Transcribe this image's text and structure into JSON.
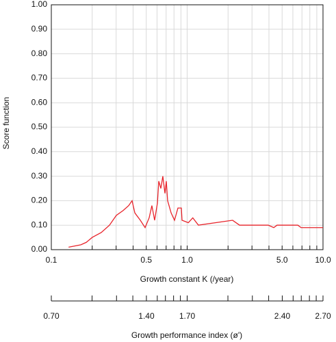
{
  "chart_data": {
    "type": "line",
    "ylabel": "Score function",
    "xlabel": "Growth constant K (/year)",
    "x2label": "Growth performance index (ø')",
    "color": "#e8232a",
    "xlog": true,
    "grid": true,
    "x": [
      0.134,
      0.165,
      0.181,
      0.2,
      0.233,
      0.268,
      0.301,
      0.338,
      0.371,
      0.393,
      0.412,
      0.452,
      0.49,
      0.525,
      0.55,
      0.576,
      0.604,
      0.618,
      0.64,
      0.662,
      0.686,
      0.702,
      0.718,
      0.762,
      0.807,
      0.855,
      0.906,
      0.917,
      1.02,
      1.1,
      1.21,
      2.16,
      2.43,
      3.95,
      4.34,
      4.59,
      6.52,
      6.9,
      10
    ],
    "values": [
      0.01,
      0.02,
      0.03,
      0.05,
      0.07,
      0.1,
      0.14,
      0.16,
      0.18,
      0.2,
      0.15,
      0.12,
      0.09,
      0.13,
      0.18,
      0.12,
      0.19,
      0.28,
      0.25,
      0.3,
      0.23,
      0.28,
      0.2,
      0.15,
      0.12,
      0.17,
      0.17,
      0.12,
      0.11,
      0.13,
      0.1,
      0.12,
      0.1,
      0.1,
      0.09,
      0.1,
      0.1,
      0.09,
      0.09
    ],
    "xlim": [
      0.1,
      10
    ],
    "xticks": [
      0.1,
      0.5,
      {
        "value": 1,
        "label": "1.0"
      },
      {
        "value": 5,
        "label": "5.0"
      },
      {
        "value": 10,
        "label": "10.0"
      }
    ],
    "xminor": [
      0.2,
      0.3,
      0.4,
      0.6,
      0.7,
      0.8,
      0.9,
      2,
      3,
      4,
      6,
      7,
      8,
      9
    ],
    "ylim": [
      0,
      1
    ],
    "yticks": [
      {
        "value": 0,
        "label": "0.00"
      },
      {
        "value": 0.1,
        "label": "0.10"
      },
      {
        "value": 0.2,
        "label": "0.20"
      },
      {
        "value": 0.3,
        "label": "0.30"
      },
      {
        "value": 0.4,
        "label": "0.40"
      },
      {
        "value": 0.5,
        "label": "0.50"
      },
      {
        "value": 0.6,
        "label": "0.60"
      },
      {
        "value": 0.7,
        "label": "0.70"
      },
      {
        "value": 0.8,
        "label": "0.80"
      },
      {
        "value": 0.9,
        "label": "0.90"
      },
      {
        "value": 1,
        "label": "1.00"
      }
    ],
    "x2lim": [
      0.7,
      2.7
    ],
    "x2ticks": [
      {
        "value": 0.7,
        "label": "0.70"
      },
      {
        "value": 1.4,
        "label": "1.40"
      },
      {
        "value": 1.7,
        "label": "1.70"
      },
      {
        "value": 2.4,
        "label": "2.40"
      },
      {
        "value": 2.7,
        "label": "2.70"
      }
    ],
    "x2minor": [
      1.0,
      1.18,
      1.3,
      1.48,
      1.54,
      1.6,
      1.65,
      2.0,
      2.18,
      2.3,
      2.48,
      2.54,
      2.6,
      2.65
    ]
  }
}
